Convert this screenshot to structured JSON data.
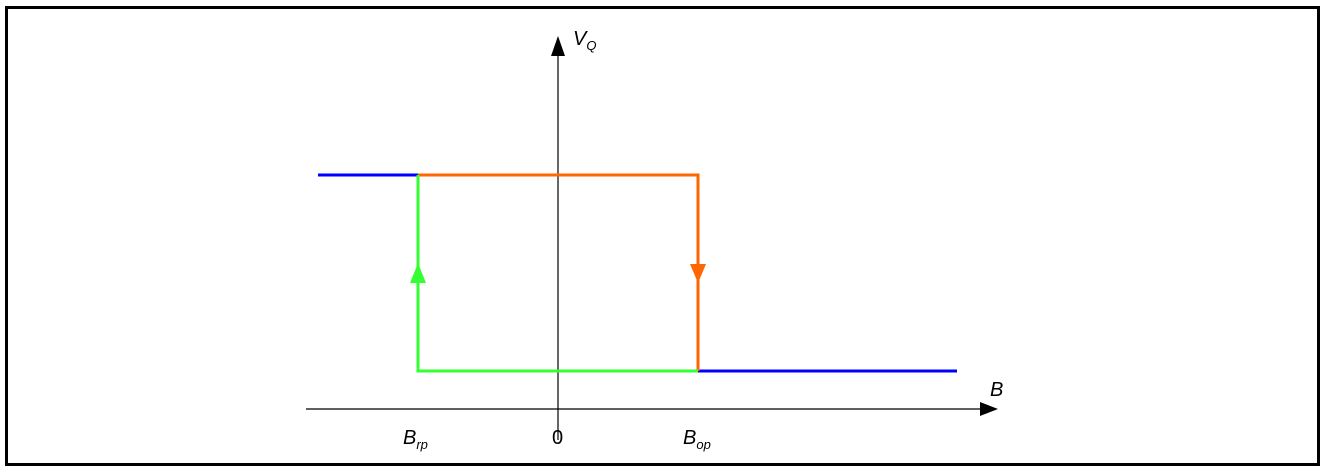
{
  "diagram": {
    "y_axis": {
      "label_main": "V",
      "label_sub": "Q"
    },
    "x_axis": {
      "label_main": "B"
    },
    "tick_labels": {
      "brp": {
        "main": "B",
        "sub": "rp"
      },
      "zero": "0",
      "bop": {
        "main": "B",
        "sub": "op"
      }
    },
    "colors": {
      "axis": "#000000",
      "outer_segments": "#0000ff",
      "falling_path": "#ff6600",
      "rising_path": "#33ff33"
    }
  }
}
